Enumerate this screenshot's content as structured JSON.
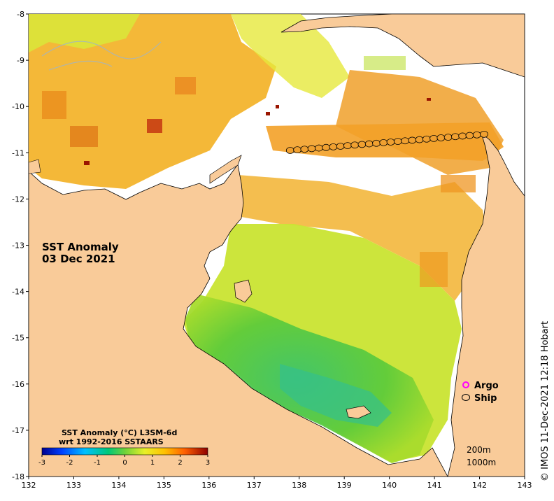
{
  "map": {
    "title_line1": "SST Anomaly",
    "title_line2": "03 Dec 2021",
    "lon_range": [
      132,
      143
    ],
    "lat_range": [
      -18,
      -8
    ],
    "lon_ticks": [
      "132",
      "133",
      "134",
      "135",
      "136",
      "137",
      "138",
      "139",
      "140",
      "141",
      "142",
      "143"
    ],
    "lat_ticks": [
      "-8",
      "-9",
      "-10",
      "-11",
      "-12",
      "-13",
      "-14",
      "-15",
      "-16",
      "-17",
      "-18"
    ],
    "land_color": "#f9cb99",
    "colorbar": {
      "title_line1": "SST Anomaly (°C) L3SM-6d",
      "title_line2": "wrt 1992-2016 SSTAARS",
      "ticks": [
        "-3",
        "-2",
        "-1",
        "0",
        "1",
        "2",
        "3"
      ],
      "min": -3,
      "max": 3
    },
    "legend": {
      "argo_label": "Argo",
      "ship_label": "Ship",
      "argo_color": "#ff00ff",
      "ship_color": "#000000"
    },
    "contours": {
      "line1": "200m",
      "line2": "1000m"
    },
    "credit": "© IMOS 11-Dec-2021 12:18 Hobart",
    "ship_track": {
      "lon_start": 137.8,
      "lon_end": 142.1,
      "lat_start": -10.95,
      "lat_end": -10.6,
      "count": 28
    }
  }
}
